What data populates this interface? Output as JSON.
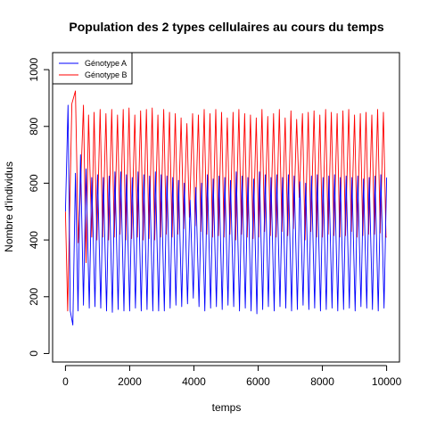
{
  "chart_data": {
    "type": "line",
    "title": "Population des 2 types cellulaires au cours du temps",
    "xlabel": "temps",
    "ylabel": "Nombre d'individus",
    "xlim": [
      -400,
      10400
    ],
    "ylim": [
      -30,
      1060
    ],
    "x_ticks": [
      0,
      2000,
      4000,
      6000,
      8000,
      10000
    ],
    "x_tick_labels": [
      "0",
      "2000",
      "4000",
      "6000",
      "8000",
      "10000"
    ],
    "y_ticks": [
      0,
      200,
      400,
      600,
      800,
      1000
    ],
    "y_tick_labels": [
      "0",
      "200",
      "400",
      "600",
      "800",
      "1000"
    ],
    "grid": false,
    "legend_position": "top-left",
    "series": [
      {
        "name": "Génotype A",
        "color": "#0000ff",
        "x": [
          0,
          80,
          150,
          230,
          310,
          390,
          470,
          560,
          640,
          740,
          820,
          920,
          1000,
          1100,
          1180,
          1280,
          1360,
          1460,
          1540,
          1640,
          1720,
          1820,
          1900,
          2000,
          2080,
          2180,
          2260,
          2360,
          2440,
          2540,
          2620,
          2720,
          2800,
          2900,
          2980,
          3080,
          3160,
          3260,
          3340,
          3440,
          3520,
          3620,
          3700,
          3800,
          3880,
          3980,
          4060,
          4160,
          4240,
          4340,
          4420,
          4520,
          4600,
          4700,
          4780,
          4880,
          4960,
          5060,
          5140,
          5240,
          5320,
          5420,
          5500,
          5600,
          5680,
          5780,
          5860,
          5960,
          6040,
          6140,
          6220,
          6320,
          6400,
          6500,
          6580,
          6680,
          6760,
          6860,
          6940,
          7040,
          7120,
          7220,
          7300,
          7400,
          7480,
          7580,
          7660,
          7760,
          7840,
          7940,
          8020,
          8120,
          8200,
          8300,
          8380,
          8480,
          8560,
          8660,
          8740,
          8840,
          8920,
          9020,
          9100,
          9200,
          9280,
          9380,
          9460,
          9560,
          9640,
          9740,
          9820,
          9920,
          10000
        ],
        "y": [
          500,
          875,
          150,
          100,
          635,
          150,
          700,
          170,
          650,
          160,
          620,
          165,
          630,
          160,
          620,
          150,
          625,
          145,
          640,
          155,
          640,
          150,
          630,
          150,
          620,
          160,
          640,
          150,
          630,
          155,
          625,
          150,
          640,
          150,
          630,
          150,
          625,
          160,
          620,
          170,
          610,
          165,
          600,
          175,
          540,
          195,
          585,
          165,
          600,
          150,
          630,
          160,
          615,
          165,
          625,
          155,
          620,
          170,
          610,
          165,
          640,
          150,
          625,
          160,
          620,
          150,
          615,
          140,
          640,
          155,
          630,
          165,
          620,
          150,
          630,
          165,
          620,
          160,
          630,
          150,
          625,
          155,
          605,
          170,
          600,
          155,
          625,
          160,
          630,
          150,
          620,
          155,
          625,
          160,
          630,
          150,
          620,
          155,
          625,
          160,
          620,
          150,
          625,
          165,
          615,
          160,
          620,
          155,
          625,
          150,
          630,
          160,
          620
        ]
      },
      {
        "name": "Génotype B",
        "color": "#ff0000",
        "x": [
          0,
          70,
          200,
          310,
          400,
          450,
          560,
          640,
          720,
          820,
          890,
          980,
          1080,
          1160,
          1260,
          1340,
          1440,
          1520,
          1620,
          1700,
          1800,
          1880,
          1980,
          2060,
          2160,
          2240,
          2340,
          2420,
          2520,
          2600,
          2700,
          2780,
          2880,
          2960,
          3060,
          3140,
          3240,
          3320,
          3420,
          3500,
          3600,
          3680,
          3780,
          3860,
          3960,
          4040,
          4140,
          4220,
          4320,
          4400,
          4500,
          4580,
          4680,
          4760,
          4860,
          4940,
          5040,
          5120,
          5220,
          5300,
          5400,
          5480,
          5580,
          5660,
          5760,
          5840,
          5940,
          6020,
          6120,
          6200,
          6300,
          6380,
          6480,
          6560,
          6660,
          6740,
          6840,
          6920,
          7020,
          7100,
          7200,
          7280,
          7380,
          7460,
          7560,
          7640,
          7740,
          7820,
          7920,
          8000,
          8100,
          8180,
          8280,
          8360,
          8460,
          8540,
          8640,
          8720,
          8820,
          8900,
          9000,
          9080,
          9180,
          9260,
          9360,
          9440,
          9540,
          9620,
          9720,
          9800,
          9900,
          9980,
          10000
        ],
        "y": [
          500,
          150,
          880,
          925,
          390,
          520,
          875,
          320,
          840,
          410,
          850,
          400,
          860,
          410,
          845,
          400,
          860,
          410,
          840,
          420,
          860,
          400,
          865,
          405,
          840,
          410,
          855,
          400,
          860,
          405,
          865,
          400,
          840,
          410,
          860,
          420,
          850,
          410,
          845,
          420,
          830,
          440,
          810,
          480,
          845,
          450,
          840,
          430,
          860,
          420,
          845,
          410,
          860,
          415,
          850,
          410,
          830,
          420,
          850,
          400,
          860,
          420,
          845,
          410,
          840,
          405,
          830,
          410,
          860,
          430,
          835,
          415,
          845,
          410,
          860,
          430,
          830,
          415,
          855,
          440,
          825,
          550,
          845,
          400,
          850,
          430,
          855,
          410,
          840,
          410,
          860,
          420,
          850,
          415,
          845,
          410,
          855,
          415,
          860,
          430,
          840,
          410,
          845,
          415,
          850,
          420,
          840,
          420,
          860,
          425,
          850,
          410,
          410
        ]
      }
    ]
  }
}
